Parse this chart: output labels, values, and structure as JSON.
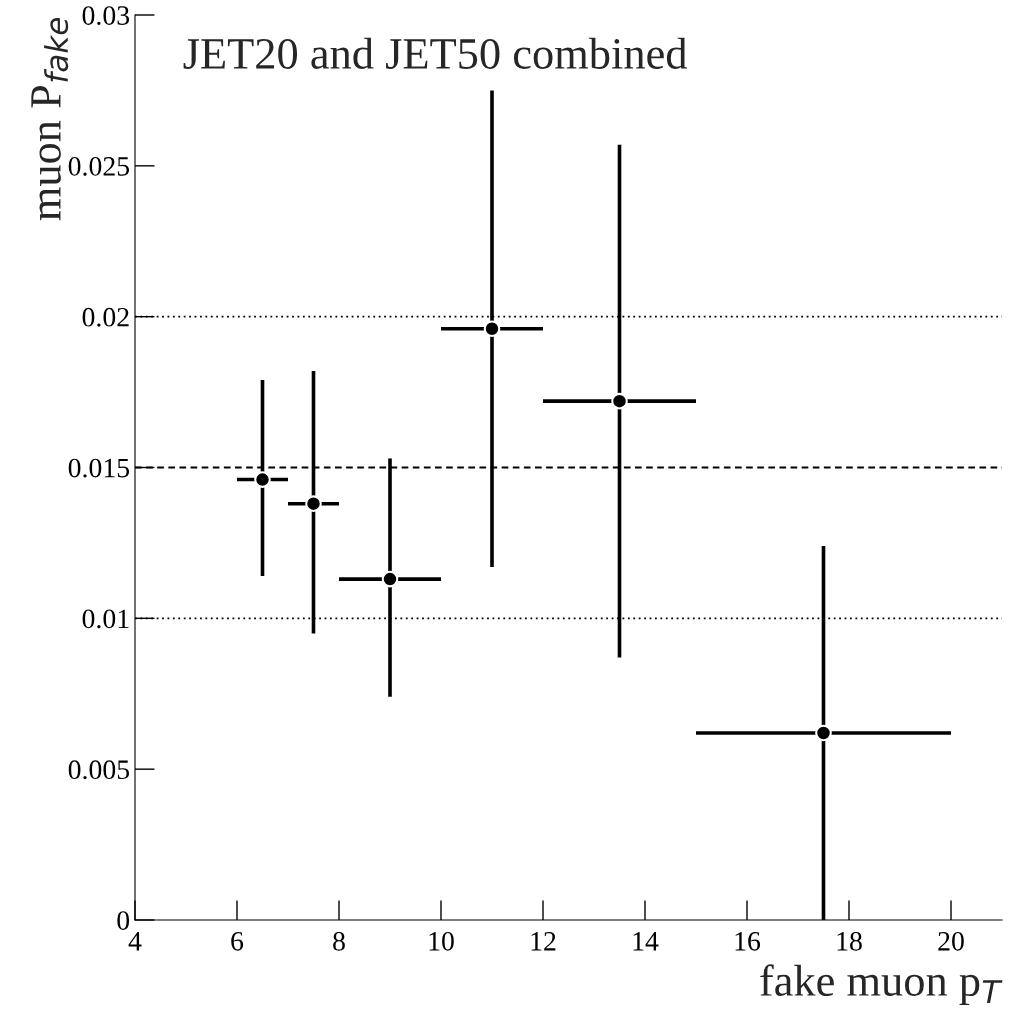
{
  "chart_data": {
    "type": "scatter",
    "xlabel": "fake muon p$_{T}$",
    "ylabel": "muon P$_{fake}$",
    "annotations": [
      "JET20 and JET50 combined"
    ],
    "x": [
      6.5,
      7.5,
      9,
      11,
      13.5,
      17.5
    ],
    "series": [
      {
        "color": "#000000",
        "values": [
          0.0146,
          0.0138,
          0.0113,
          0.0196,
          0.0172,
          0.0062
        ],
        "errors": [
          [
            0.0114,
            0.0179
          ],
          [
            0.0095,
            0.0182
          ],
          [
            0.0074,
            0.0153
          ],
          [
            0.0117,
            0.0275
          ],
          [
            0.0087,
            0.0257
          ],
          [
            0,
            0.0124
          ]
        ],
        "xerrors": [
          0.5,
          0.5,
          1,
          1,
          1.5,
          2.5
        ]
      }
    ],
    "marker": "circle",
    "xlim": [
      4,
      21
    ],
    "xticks": [
      4,
      6,
      8,
      10,
      12,
      14,
      16,
      18,
      20
    ],
    "ylim": [
      0,
      0.03
    ],
    "yticks": [
      0,
      0.005,
      0.01,
      0.015,
      0.02,
      0.025,
      0.03
    ],
    "ref_lines": [
      {
        "axis": "y",
        "value": 0.01,
        "line_style": "dotted"
      },
      {
        "axis": "y",
        "value": 0.015,
        "line_style": "dashed"
      },
      {
        "axis": "y",
        "value": 0.02,
        "line_style": "dotted"
      }
    ],
    "grid": false,
    "legend": false
  }
}
